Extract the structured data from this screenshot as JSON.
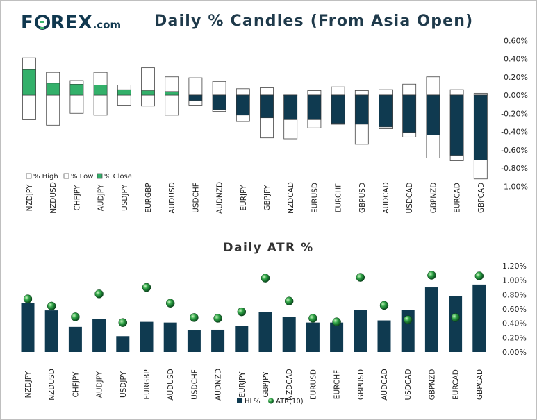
{
  "logo": {
    "brand_left": "F",
    "brand_right": "REX",
    "brand_suffix": ".com"
  },
  "colors": {
    "dark": "#0f3a50",
    "green": "#33b06a",
    "ball": "#1f8a3c"
  },
  "chart_data": [
    {
      "type": "bar",
      "title": "Daily % Candles (From Asia Open)",
      "categories": [
        "NZDJPY",
        "NZDUSD",
        "CHFJPY",
        "AUDJPY",
        "USDJPY",
        "EURGBP",
        "AUDUSD",
        "USDCHF",
        "AUDNZD",
        "EURJPY",
        "GBPJPY",
        "NZDCAD",
        "EURUSD",
        "EURCHF",
        "GBPUSD",
        "AUDCAD",
        "USDCAD",
        "GBPNZD",
        "EURCAD",
        "GBPCAD"
      ],
      "series": [
        {
          "name": "% High",
          "values": [
            0.41,
            0.25,
            0.16,
            0.25,
            0.11,
            0.3,
            0.2,
            0.19,
            0.15,
            0.07,
            0.08,
            0.0,
            0.05,
            0.09,
            0.05,
            0.06,
            0.12,
            0.2,
            0.06,
            0.02
          ]
        },
        {
          "name": "% Low",
          "values": [
            -0.27,
            -0.33,
            -0.2,
            -0.22,
            -0.11,
            -0.12,
            -0.22,
            -0.11,
            -0.18,
            -0.29,
            -0.47,
            -0.48,
            -0.36,
            -0.32,
            -0.54,
            -0.37,
            -0.46,
            -0.69,
            -0.72,
            -0.92
          ]
        },
        {
          "name": "% Close",
          "values": [
            0.28,
            0.13,
            0.12,
            0.11,
            0.06,
            0.05,
            0.04,
            -0.06,
            -0.16,
            -0.22,
            -0.25,
            -0.27,
            -0.27,
            -0.31,
            -0.32,
            -0.35,
            -0.41,
            -0.44,
            -0.66,
            -0.71
          ]
        }
      ],
      "ylim": [
        -1.0,
        0.6
      ],
      "yticks": [
        "0.60%",
        "0.40%",
        "0.20%",
        "0.00%",
        "-0.20%",
        "-0.40%",
        "-0.60%",
        "-0.80%",
        "-1.00%"
      ],
      "legend": {
        "position": "bottom-left",
        "items": [
          "% High",
          "% Low",
          "% Close"
        ]
      }
    },
    {
      "type": "bar",
      "title": "Daily ATR %",
      "categories": [
        "NZDJPY",
        "NZDUSD",
        "CHFJPY",
        "AUDJPY",
        "USDJPY",
        "EURGBP",
        "AUDUSD",
        "USDCHF",
        "AUDNZD",
        "EURJPY",
        "GBPJPY",
        "NZDCAD",
        "EURUSD",
        "EURCHF",
        "GBPUSD",
        "AUDCAD",
        "USDCAD",
        "GBPNZD",
        "EURCAD",
        "GBPCAD"
      ],
      "series": [
        {
          "name": "HL%",
          "values": [
            0.68,
            0.58,
            0.35,
            0.46,
            0.22,
            0.42,
            0.41,
            0.3,
            0.31,
            0.36,
            0.56,
            0.49,
            0.41,
            0.41,
            0.59,
            0.44,
            0.59,
            0.9,
            0.78,
            0.94
          ]
        },
        {
          "name": "ATR(10)",
          "values": [
            0.74,
            0.64,
            0.49,
            0.81,
            0.41,
            0.9,
            0.68,
            0.48,
            0.47,
            0.56,
            1.03,
            0.71,
            0.47,
            0.42,
            1.04,
            0.65,
            0.45,
            1.07,
            0.48,
            1.06
          ]
        }
      ],
      "ylim": [
        0,
        1.2
      ],
      "yticks": [
        "1.20%",
        "1.00%",
        "0.80%",
        "0.60%",
        "0.40%",
        "0.20%",
        "0.00%"
      ],
      "legend": {
        "position": "bottom-center",
        "items": [
          "HL%",
          "ATR(10)"
        ]
      }
    }
  ]
}
